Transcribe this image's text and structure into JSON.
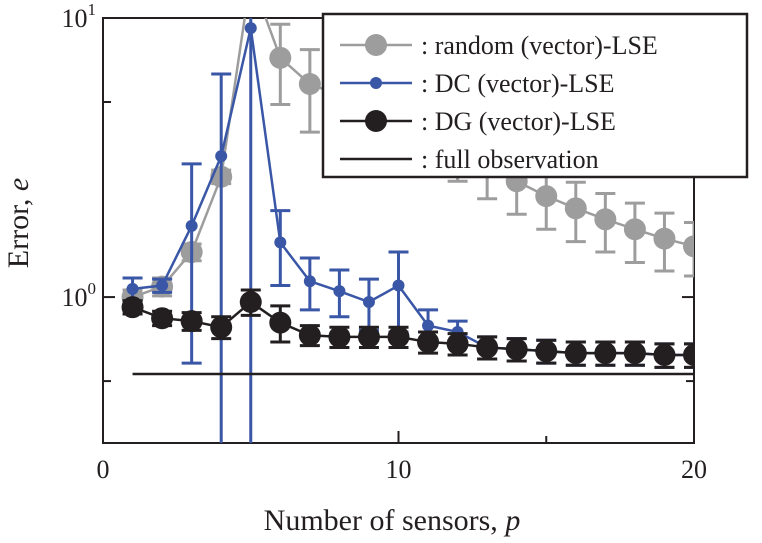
{
  "chart_data": {
    "type": "line",
    "xlabel": "Number of sensors,",
    "xlabel_var": "p",
    "ylabel": "Error,",
    "ylabel_var": "e",
    "xlim": [
      0,
      20
    ],
    "ylim": [
      0.3,
      10
    ],
    "yscale": "log",
    "x_ticks": [
      0,
      10,
      20
    ],
    "y_ticks": [
      {
        "base": "10",
        "exp": "0",
        "value": 1
      },
      {
        "base": "10",
        "exp": "1",
        "value": 10
      }
    ],
    "legend_position": "top-right",
    "series": [
      {
        "name": ": random (vector)-LSE",
        "color": "#9d9d9d",
        "marker": "big",
        "x": [
          1,
          2,
          3,
          4,
          5,
          6,
          7,
          8,
          9,
          10,
          11,
          12,
          13,
          14,
          15,
          16,
          17,
          18,
          19,
          20
        ],
        "y": [
          1.0,
          1.09,
          1.45,
          2.7,
          14.0,
          7.2,
          5.8,
          5.3,
          5.0,
          4.6,
          4.0,
          3.5,
          3.0,
          2.6,
          2.3,
          2.08,
          1.9,
          1.75,
          1.62,
          1.52
        ],
        "err_lo": [
          0.06,
          0.08,
          0.1,
          0.15,
          null,
          2.3,
          1.9,
          1.6,
          1.5,
          1.3,
          1.1,
          0.9,
          0.75,
          0.62,
          0.55,
          0.5,
          0.45,
          0.42,
          0.38,
          0.33
        ],
        "err_hi": [
          0.06,
          0.08,
          0.1,
          0.15,
          null,
          2.3,
          1.9,
          1.6,
          1.5,
          1.3,
          1.1,
          0.9,
          0.75,
          0.62,
          0.55,
          0.5,
          0.45,
          0.42,
          0.38,
          0.33
        ]
      },
      {
        "name": ": DC (vector)-LSE",
        "color": "#3a56a6",
        "marker": "small",
        "x": [
          1,
          2,
          3,
          4,
          5,
          6,
          7,
          8,
          9,
          10,
          11,
          12,
          13,
          14,
          15,
          16,
          17,
          18,
          19,
          20
        ],
        "y": [
          1.07,
          1.1,
          1.8,
          3.2,
          9.2,
          1.57,
          1.14,
          1.05,
          0.96,
          1.1,
          0.79,
          0.75,
          0.66,
          0.65,
          0.64,
          0.63,
          0.63,
          0.63,
          0.62,
          0.62
        ],
        "err_lo": [
          0.1,
          0.06,
          1.22,
          2.9,
          8.9,
          0.47,
          0.24,
          0.2,
          0.2,
          0.35,
          0.11,
          0.07,
          0.06,
          0.06,
          0.06,
          0.06,
          0.06,
          0.06,
          0.06,
          0.06
        ],
        "err_hi": [
          0.1,
          0.06,
          1.2,
          3.1,
          0.8,
          0.47,
          0.24,
          0.2,
          0.2,
          0.35,
          0.11,
          0.07,
          0.06,
          0.06,
          0.06,
          0.06,
          0.06,
          0.06,
          0.06,
          0.06
        ]
      },
      {
        "name": ": DG (vector)-LSE",
        "color": "#231f20",
        "marker": "big",
        "x": [
          1,
          2,
          3,
          4,
          5,
          6,
          7,
          8,
          9,
          10,
          11,
          12,
          13,
          14,
          15,
          16,
          17,
          18,
          19,
          20
        ],
        "y": [
          0.92,
          0.84,
          0.82,
          0.78,
          0.96,
          0.81,
          0.73,
          0.72,
          0.72,
          0.72,
          0.69,
          0.68,
          0.66,
          0.65,
          0.64,
          0.63,
          0.63,
          0.63,
          0.62,
          0.62
        ],
        "err_lo": [
          0.05,
          0.05,
          0.06,
          0.07,
          0.1,
          0.12,
          0.06,
          0.06,
          0.06,
          0.06,
          0.06,
          0.06,
          0.06,
          0.06,
          0.06,
          0.06,
          0.06,
          0.06,
          0.06,
          0.06
        ],
        "err_hi": [
          0.05,
          0.05,
          0.06,
          0.07,
          0.1,
          0.12,
          0.06,
          0.06,
          0.06,
          0.06,
          0.06,
          0.06,
          0.06,
          0.06,
          0.06,
          0.06,
          0.06,
          0.06,
          0.06,
          0.06
        ]
      },
      {
        "name": ": full observation",
        "color": "#231f20",
        "marker": "none",
        "x": [
          1,
          20
        ],
        "y": [
          0.53,
          0.53
        ]
      }
    ]
  }
}
